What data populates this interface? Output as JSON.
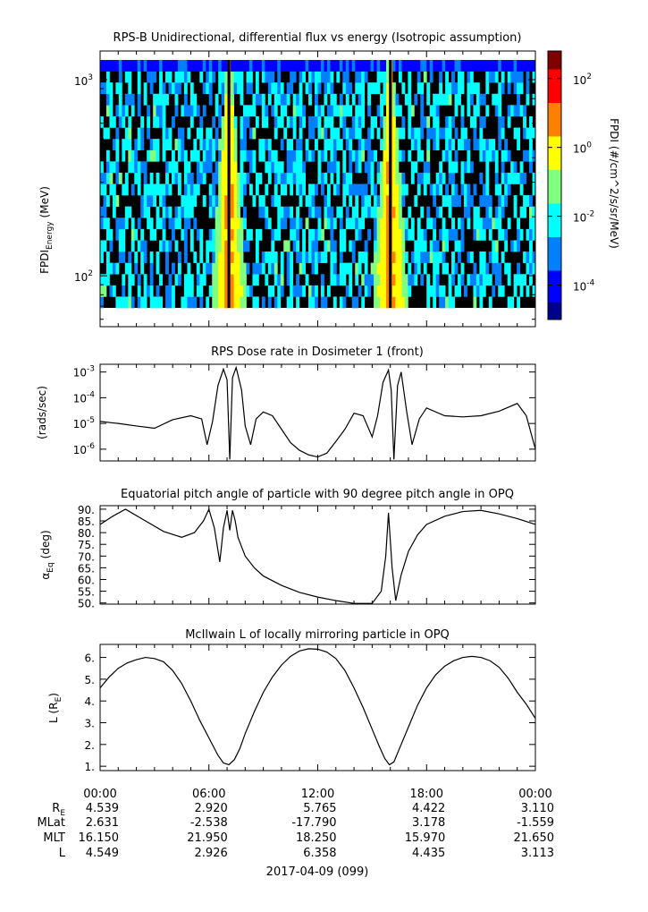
{
  "colors": {
    "axis": "#000000",
    "line": "#000000",
    "background": "#ffffff",
    "spectrogram_colorscale": [
      "#00008f",
      "#0000ff",
      "#0080ff",
      "#00ffff",
      "#80ff80",
      "#ffff00",
      "#ff8000",
      "#ff0000",
      "#800000"
    ]
  },
  "chart_data": [
    {
      "type": "heatmap",
      "title": "RPS-B  Unidirectional, differential flux vs energy (Isotropic assumption)",
      "ylabel": "FPDI",
      "ylabel_sub": "Energy",
      "ylabel_unit": "(MeV)",
      "yscale": "log",
      "ylim": [
        55,
        1400
      ],
      "yticks": [
        {
          "value": 100,
          "base": "10",
          "exp": "2"
        },
        {
          "value": 1000,
          "base": "10",
          "exp": "3"
        }
      ],
      "xlim": [
        0,
        24
      ],
      "colorbar": {
        "label": "FPDI (#/cm^2/s/sr/MeV)",
        "scale": "log",
        "range": [
          -5,
          2.8
        ],
        "ticks": [
          {
            "value": 2,
            "base": "10",
            "exp": "2"
          },
          {
            "value": 0,
            "base": "10",
            "exp": "0"
          },
          {
            "value": -2,
            "base": "10",
            "exp": "-2"
          },
          {
            "value": -4,
            "base": "10",
            "exp": "-4"
          }
        ]
      },
      "features": {
        "perigee_hours": [
          7.1,
          16.0
        ],
        "background_log_flux": -2.5,
        "peak_log_flux": 1.0
      }
    },
    {
      "type": "line",
      "title": "RPS  Dose rate in Dosimeter 1 (front)",
      "ylabel": "(rads/sec)",
      "yscale": "log",
      "ylim": [
        3.5e-07,
        0.002
      ],
      "yticks": [
        {
          "value": 0.001,
          "base": "10",
          "exp": "-3"
        },
        {
          "value": 0.0001,
          "base": "10",
          "exp": "-4"
        },
        {
          "value": 1e-05,
          "base": "10",
          "exp": "-5"
        },
        {
          "value": 1e-06,
          "base": "10",
          "exp": "-6"
        }
      ],
      "xlim": [
        0,
        24
      ],
      "x": [
        0,
        1,
        2,
        3,
        4,
        5,
        5.6,
        5.9,
        6.2,
        6.5,
        6.8,
        7.0,
        7.15,
        7.3,
        7.5,
        7.8,
        8.0,
        8.3,
        8.6,
        9.0,
        9.5,
        10.0,
        10.5,
        11.0,
        11.5,
        12.0,
        12.5,
        13.0,
        13.5,
        14.0,
        14.5,
        15.0,
        15.3,
        15.6,
        15.9,
        16.05,
        16.2,
        16.4,
        16.6,
        16.9,
        17.2,
        17.6,
        18.0,
        19.0,
        20.0,
        21.0,
        22.0,
        23.0,
        23.5,
        24.0
      ],
      "y": [
        1.2e-05,
        1e-05,
        8e-06,
        6.5e-06,
        1.4e-05,
        2e-05,
        1.5e-05,
        1.5e-06,
        1.2e-05,
        0.0003,
        0.0013,
        0.0005,
        4e-07,
        0.0006,
        0.0015,
        0.0002,
        8e-06,
        1.5e-06,
        1.5e-05,
        2.8e-05,
        2e-05,
        6e-06,
        1.8e-06,
        9e-07,
        6e-07,
        5e-07,
        7e-07,
        2e-06,
        6e-06,
        2.5e-05,
        2e-05,
        3e-06,
        2e-05,
        0.0004,
        0.0012,
        0.0002,
        4e-07,
        0.0003,
        0.001,
        3e-05,
        1.5e-06,
        1.5e-05,
        4e-05,
        2e-05,
        1.8e-05,
        2e-05,
        3e-05,
        6e-05,
        2e-05,
        1e-06
      ]
    },
    {
      "type": "line",
      "title": "Equatorial pitch angle of particle with 90 degree pitch angle in OPQ",
      "ylabel": "α",
      "ylabel_sub": "Eq",
      "ylabel_unit": "(deg)",
      "ylim": [
        49.5,
        91.5
      ],
      "yticks": [
        50,
        55,
        60,
        65,
        70,
        75,
        80,
        85,
        90
      ],
      "xlim": [
        0,
        24
      ],
      "x": [
        0,
        0.7,
        1.4,
        2.5,
        3.5,
        4.5,
        5.2,
        5.7,
        6.0,
        6.3,
        6.6,
        6.8,
        7.0,
        7.15,
        7.3,
        7.45,
        7.6,
        8.0,
        8.5,
        9.0,
        10.0,
        11.0,
        12.0,
        13.0,
        14.0,
        15.0,
        15.5,
        15.75,
        15.9,
        16.1,
        16.3,
        16.6,
        17.0,
        17.5,
        18.0,
        19.0,
        20.0,
        21.0,
        22.0,
        23.0,
        24.0
      ],
      "y": [
        83.5,
        87.0,
        90.0,
        85.0,
        80.5,
        78.0,
        80.0,
        85.0,
        90.0,
        82.0,
        67.5,
        82.0,
        89.5,
        81.0,
        89.5,
        85.0,
        78.0,
        70.0,
        65.0,
        61.5,
        57.5,
        54.5,
        52.5,
        51.0,
        49.8,
        49.8,
        55.0,
        70.0,
        88.5,
        65.0,
        51.0,
        62.0,
        72.0,
        79.0,
        83.5,
        87.0,
        89.0,
        89.5,
        88.0,
        86.0,
        83.5
      ]
    },
    {
      "type": "line",
      "title": "McIlwain L of locally mirroring particle in OPQ",
      "ylabel": "L (R",
      "ylabel_sub": "E",
      "ylabel_unit": ")",
      "ylim": [
        0.8,
        6.6
      ],
      "yticks": [
        1,
        2,
        3,
        4,
        5,
        6
      ],
      "ytick_labels": [
        "1.",
        "2.",
        "3.",
        "4.",
        "5.",
        "6."
      ],
      "xlim": [
        0,
        24
      ],
      "x": [
        0,
        0.5,
        1,
        1.5,
        2,
        2.5,
        3,
        3.5,
        4,
        4.5,
        5,
        5.5,
        6,
        6.5,
        6.8,
        7.1,
        7.4,
        7.7,
        8,
        8.5,
        9,
        9.5,
        10,
        10.5,
        11,
        11.5,
        12,
        12.5,
        13,
        13.5,
        14,
        14.5,
        15,
        15.4,
        15.7,
        15.95,
        16.2,
        16.5,
        17,
        17.5,
        18,
        18.5,
        19,
        19.5,
        20,
        20.5,
        21,
        21.5,
        22,
        22.5,
        23,
        23.5,
        24
      ],
      "y": [
        4.6,
        5.1,
        5.5,
        5.75,
        5.9,
        6.0,
        5.95,
        5.8,
        5.4,
        4.8,
        4.0,
        3.1,
        2.3,
        1.5,
        1.15,
        1.07,
        1.3,
        1.8,
        2.5,
        3.5,
        4.4,
        5.1,
        5.65,
        6.05,
        6.3,
        6.4,
        6.38,
        6.25,
        5.95,
        5.4,
        4.6,
        3.7,
        2.7,
        1.9,
        1.35,
        1.07,
        1.2,
        1.8,
        2.8,
        3.8,
        4.6,
        5.2,
        5.6,
        5.85,
        6.0,
        6.05,
        6.0,
        5.85,
        5.55,
        5.05,
        4.4,
        3.85,
        3.2
      ]
    }
  ],
  "x_axis": {
    "tick_labels": [
      "00:00",
      "06:00",
      "12:00",
      "18:00",
      "00:00"
    ],
    "ephemeris": [
      {
        "label": "R",
        "sub": "E",
        "values": [
          "4.539",
          "2.920",
          "5.765",
          "4.422",
          "3.110"
        ]
      },
      {
        "label": "MLat",
        "sub": "",
        "values": [
          "2.631",
          "-2.538",
          "-17.790",
          "3.178",
          "-1.559"
        ]
      },
      {
        "label": "MLT",
        "sub": "",
        "values": [
          "16.150",
          "21.950",
          "18.250",
          "15.970",
          "21.650"
        ]
      },
      {
        "label": "L",
        "sub": "",
        "values": [
          "4.549",
          "2.926",
          "6.358",
          "4.435",
          "3.113"
        ]
      }
    ],
    "date_label": "2017-04-09 (099)"
  }
}
